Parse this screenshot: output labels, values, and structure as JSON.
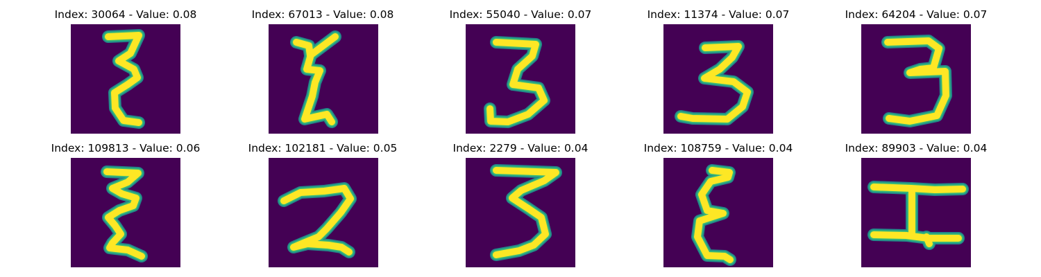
{
  "figure": {
    "colors": {
      "background": "#440154",
      "stroke_core": "#fde725",
      "stroke_edge": "#35b779",
      "stroke_outer": "#21908d"
    },
    "panels": [
      {
        "title": "Index: 30064 - Value: 0.08",
        "glyph": "epsilon-tall"
      },
      {
        "title": "Index: 67013 - Value: 0.08",
        "glyph": "epsilon-zigzag"
      },
      {
        "title": "Index: 55040 - Value: 0.07",
        "glyph": "three-open"
      },
      {
        "title": "Index: 11374 - Value: 0.07",
        "glyph": "three-round"
      },
      {
        "title": "Index: 64204 - Value: 0.07",
        "glyph": "three-wide"
      },
      {
        "title": "Index: 109813 - Value: 0.06",
        "glyph": "epsilon-wavy"
      },
      {
        "title": "Index: 102181 - Value: 0.05",
        "glyph": "two-like"
      },
      {
        "title": "Index: 2279 - Value: 0.04",
        "glyph": "three-flat-top"
      },
      {
        "title": "Index: 108759 - Value: 0.04",
        "glyph": "epsilon-round"
      },
      {
        "title": "Index: 89903 - Value: 0.04",
        "glyph": "h-sideways"
      }
    ]
  }
}
